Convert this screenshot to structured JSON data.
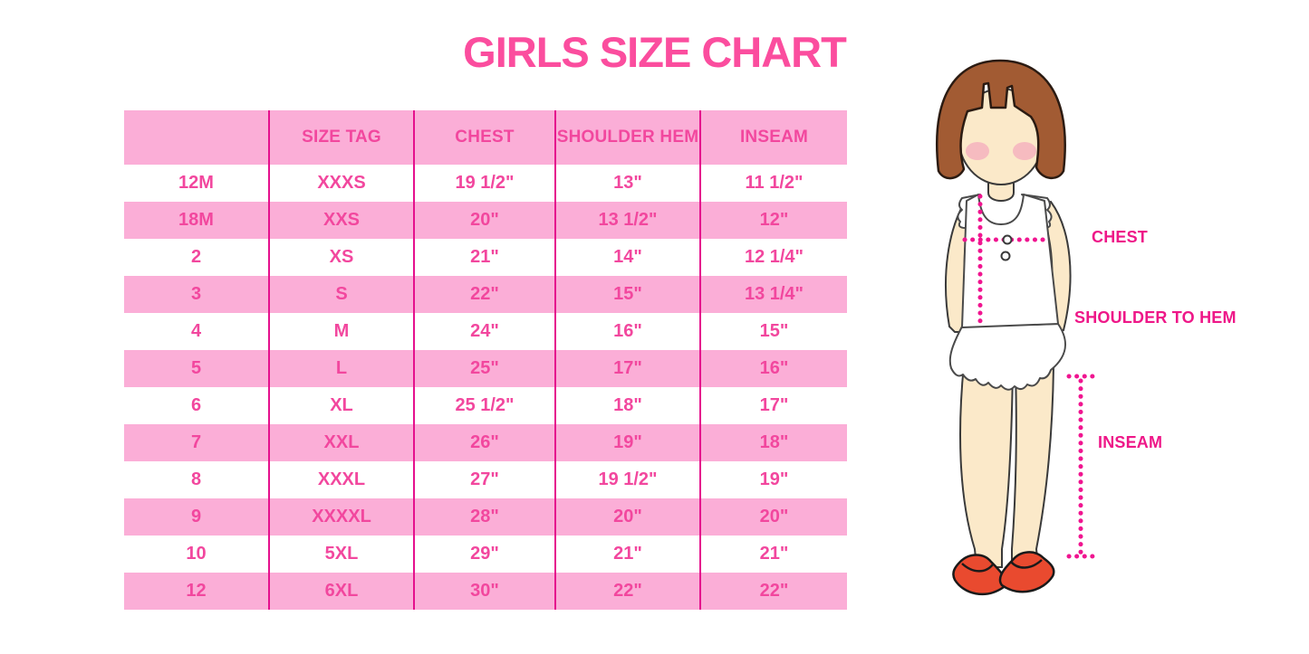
{
  "title": "GIRLS SIZE CHART",
  "colors": {
    "title": "#FB4D9E",
    "table_text": "#F2479E",
    "row_pink": "#FBAED7",
    "divider": "#E5108D",
    "label_text": "#EE1788",
    "dotted": "#F01590",
    "hair": "#A25B33",
    "hair_outline": "#2B1B12",
    "skin": "#FBE9C9",
    "skin_outline": "#3a3a3a",
    "blush": "#F5AFBE",
    "dress_outline": "#4a4a4a",
    "shoe": "#E94A2F",
    "shoe_outline": "#1a1a1a"
  },
  "figure": {
    "chest_label": "CHEST",
    "shoulder_hem_label": "SHOULDER TO HEM",
    "inseam_label": "INSEAM"
  },
  "chart_data": {
    "type": "table",
    "title": "GIRLS SIZE CHART",
    "columns": [
      "",
      "SIZE TAG",
      "CHEST",
      "SHOULDER HEM",
      "INSEAM"
    ],
    "rows": [
      [
        "12M",
        "XXXS",
        "19 1/2\"",
        "13\"",
        "11 1/2\""
      ],
      [
        "18M",
        "XXS",
        "20\"",
        "13 1/2\"",
        "12\""
      ],
      [
        "2",
        "XS",
        "21\"",
        "14\"",
        "12 1/4\""
      ],
      [
        "3",
        "S",
        "22\"",
        "15\"",
        "13 1/4\""
      ],
      [
        "4",
        "M",
        "24\"",
        "16\"",
        "15\""
      ],
      [
        "5",
        "L",
        "25\"",
        "17\"",
        "16\""
      ],
      [
        "6",
        "XL",
        "25 1/2\"",
        "18\"",
        "17\""
      ],
      [
        "7",
        "XXL",
        "26\"",
        "19\"",
        "18\""
      ],
      [
        "8",
        "XXXL",
        "27\"",
        "19 1/2\"",
        "19\""
      ],
      [
        "9",
        "XXXXL",
        "28\"",
        "20\"",
        "20\""
      ],
      [
        "10",
        "5XL",
        "29\"",
        "21\"",
        "21\""
      ],
      [
        "12",
        "6XL",
        "30\"",
        "22\"",
        "22\""
      ]
    ]
  }
}
